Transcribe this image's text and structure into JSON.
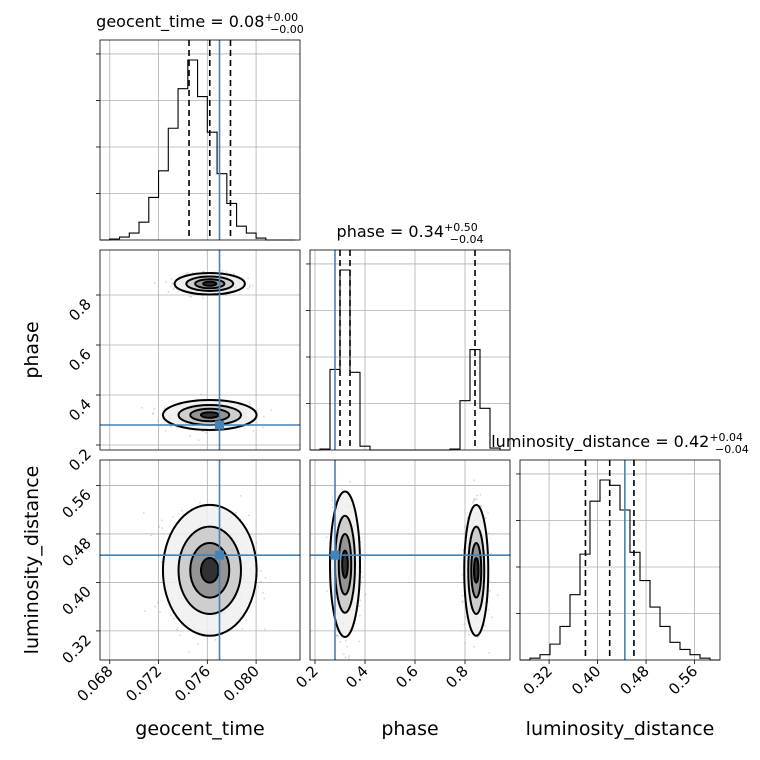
{
  "chart_data": {
    "type": "corner",
    "parameters": [
      "geocent_time",
      "phase",
      "luminosity_distance"
    ],
    "titles": [
      {
        "param": "geocent_time",
        "label": "geocent_time = 0.08",
        "upper": "+0.00",
        "lower": "−0.00"
      },
      {
        "param": "phase",
        "label": "phase = 0.34",
        "upper": "+0.50",
        "lower": "−0.04"
      },
      {
        "param": "luminosity_distance",
        "label": "luminosity_distance = 0.42",
        "upper": "+0.04",
        "lower": "−0.04"
      }
    ],
    "ranges": {
      "geocent_time": [
        0.0672,
        0.0836
      ],
      "phase": [
        0.18,
        0.98
      ],
      "luminosity_distance": [
        0.272,
        0.602
      ]
    },
    "ticks": {
      "geocent_time": [
        "0.068",
        "0.072",
        "0.076",
        "0.080"
      ],
      "phase": [
        "0.2",
        "0.4",
        "0.6",
        "0.8"
      ],
      "luminosity_distance": [
        "0.32",
        "0.40",
        "0.48",
        "0.56"
      ]
    },
    "truths": {
      "geocent_time": 0.077,
      "phase": 0.28,
      "luminosity_distance": 0.445
    },
    "quantiles": {
      "geocent_time": [
        0.0745,
        0.0762,
        0.0779
      ],
      "phase": [
        0.3,
        0.34,
        0.84
      ],
      "luminosity_distance": [
        0.38,
        0.42,
        0.46
      ]
    },
    "hist_geocent_time": {
      "edges": [
        0.0672,
        0.068,
        0.0688,
        0.0696,
        0.0704,
        0.0712,
        0.072,
        0.0728,
        0.0736,
        0.0744,
        0.0752,
        0.076,
        0.0768,
        0.0776,
        0.0784,
        0.0792,
        0.08,
        0.0808,
        0.0816,
        0.0824,
        0.0832
      ],
      "counts": [
        0,
        1,
        3,
        7,
        18,
        43,
        70,
        113,
        153,
        182,
        145,
        109,
        67,
        37,
        14,
        7,
        2,
        0,
        0,
        0
      ]
    },
    "hist_phase": {
      "edges": [
        0.18,
        0.22,
        0.26,
        0.3,
        0.34,
        0.38,
        0.42,
        0.46,
        0.5,
        0.54,
        0.58,
        0.62,
        0.66,
        0.7,
        0.74,
        0.78,
        0.82,
        0.86,
        0.9,
        0.94,
        0.98
      ],
      "counts": [
        0,
        1,
        85,
        190,
        82,
        4,
        0,
        0,
        0,
        0,
        0,
        0,
        0,
        0,
        1,
        52,
        106,
        44,
        2,
        0
      ]
    },
    "hist_luminosity_distance": {
      "edges": [
        0.272,
        0.2885,
        0.305,
        0.3215,
        0.338,
        0.3545,
        0.371,
        0.3875,
        0.404,
        0.4205,
        0.437,
        0.4535,
        0.47,
        0.4865,
        0.503,
        0.5195,
        0.536,
        0.5525,
        0.569,
        0.5855,
        0.602
      ],
      "counts": [
        0,
        1,
        3,
        9,
        19,
        37,
        60,
        90,
        102,
        99,
        85,
        61,
        45,
        30,
        19,
        10,
        6,
        3,
        1,
        0
      ]
    },
    "clusters": [
      {
        "panel": "geocent_time-phase",
        "cx": 0.0762,
        "cy": 0.32,
        "sx": 0.0016,
        "sy": 0.025
      },
      {
        "panel": "geocent_time-phase",
        "cx": 0.0762,
        "cy": 0.845,
        "sx": 0.0012,
        "sy": 0.018
      },
      {
        "panel": "geocent_time-luminosity_distance",
        "cx": 0.0762,
        "cy": 0.42,
        "sx": 0.0016,
        "sy": 0.045
      },
      {
        "panel": "phase-luminosity_distance",
        "cx": 0.32,
        "cy": 0.43,
        "sx": 0.025,
        "sy": 0.05
      },
      {
        "panel": "phase-luminosity_distance",
        "cx": 0.845,
        "cy": 0.42,
        "sx": 0.02,
        "sy": 0.045
      }
    ]
  }
}
